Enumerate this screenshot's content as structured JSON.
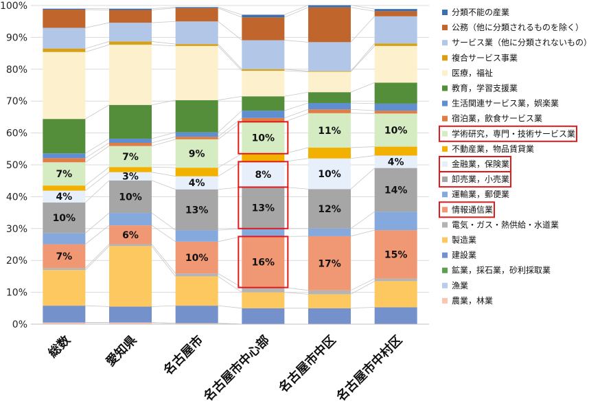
{
  "chart_data": {
    "type": "bar",
    "stacked": "percent",
    "categories": [
      "総数",
      "愛知県",
      "名古屋市",
      "名古屋市中心部",
      "名古屋市中区",
      "名古屋市中村区"
    ],
    "ylim": [
      0,
      100
    ],
    "y_ticks": [
      "0%",
      "10%",
      "20%",
      "30%",
      "40%",
      "50%",
      "60%",
      "70%",
      "80%",
      "90%",
      "100%"
    ],
    "legend_position": "right",
    "legend_order": "top-to-bottom matches stack top-to-bottom",
    "series": [
      {
        "name": "農業，林業",
        "color": "#f7c5b0",
        "values": [
          0.5,
          0.5,
          0.3,
          0.0,
          0.0,
          0.0
        ]
      },
      {
        "name": "漁業",
        "color": "#b7cde9",
        "values": [
          0.0,
          0.0,
          0.0,
          0.0,
          0.0,
          0.0
        ]
      },
      {
        "name": "鉱業，採石業，砂利採取業",
        "color": "#5e9e4f",
        "values": [
          0.0,
          0.0,
          0.0,
          0.0,
          0.0,
          0.0
        ]
      },
      {
        "name": "建設業",
        "color": "#7591cb",
        "values": [
          5.3,
          5.0,
          5.5,
          5.0,
          5.0,
          5.3
        ]
      },
      {
        "name": "製造業",
        "color": "#fcc85f",
        "values": [
          11.2,
          19.0,
          9.2,
          5.0,
          4.4,
          8.2
        ]
      },
      {
        "name": "電気・ガス・熱供給・水道業",
        "color": "#b4b4b4",
        "values": [
          0.6,
          0.6,
          0.9,
          1.5,
          1.2,
          0.8
        ]
      },
      {
        "name": "情報通信業",
        "color": "#f09873",
        "values": [
          7.5,
          5.9,
          10.0,
          16.0,
          17.0,
          15.2
        ]
      },
      {
        "name": "運輸業，郵便業",
        "color": "#85a9dc",
        "values": [
          3.5,
          3.9,
          3.6,
          2.5,
          2.4,
          5.8
        ]
      },
      {
        "name": "卸売業，小売業",
        "color": "#a6a6a6",
        "values": [
          9.6,
          10.2,
          12.8,
          13.0,
          12.4,
          13.7
        ]
      },
      {
        "name": "金融業，保険業",
        "color": "#e6effa",
        "values": [
          3.7,
          2.6,
          4.1,
          8.0,
          9.6,
          3.9
        ]
      },
      {
        "name": "不動産業，物品賃貸業",
        "color": "#f2b101",
        "values": [
          1.6,
          1.6,
          2.7,
          2.5,
          3.4,
          2.8
        ]
      },
      {
        "name": "学術研究，専門・技術サービス業",
        "color": "#d5ebc2",
        "values": [
          7.3,
          6.6,
          8.9,
          10.0,
          10.8,
          10.4
        ]
      },
      {
        "name": "宿泊業，飲食サービス業",
        "color": "#df7d44",
        "values": [
          1.3,
          1.0,
          0.8,
          1.2,
          1.2,
          0.9
        ]
      },
      {
        "name": "生活関連サービス業，娯楽業",
        "color": "#5f8fd0",
        "values": [
          1.5,
          1.3,
          1.4,
          2.3,
          2.0,
          2.2
        ]
      },
      {
        "name": "教育，学習支援業",
        "color": "#548e3a",
        "values": [
          10.8,
          10.6,
          10.1,
          4.5,
          3.4,
          6.6
        ]
      },
      {
        "name": "医療，福祉",
        "color": "#fdf0cd",
        "values": [
          21.0,
          18.9,
          17.0,
          8.0,
          6.4,
          11.5
        ]
      },
      {
        "name": "複合サービス事業",
        "color": "#d8a016",
        "values": [
          1.1,
          1.0,
          0.6,
          0.5,
          0.2,
          0.8
        ]
      },
      {
        "name": "サービス業（他に分類されないもの）",
        "color": "#b2c7e8",
        "values": [
          6.5,
          5.9,
          7.1,
          9.1,
          9.1,
          8.5
        ]
      },
      {
        "name": "公務（他に分類されるものを除く）",
        "color": "#c0652b",
        "values": [
          5.7,
          4.0,
          4.2,
          7.2,
          10.9,
          1.6
        ]
      },
      {
        "name": "分類不能の産業",
        "color": "#3c6fae",
        "values": [
          0.3,
          0.4,
          0.3,
          0.8,
          0.7,
          0.7
        ]
      }
    ],
    "data_labels": [
      {
        "series": "情報通信業",
        "labels": [
          "7%",
          "6%",
          "10%",
          "16%",
          "17%",
          "15%"
        ]
      },
      {
        "series": "卸売業，小売業",
        "labels": [
          "10%",
          "10%",
          "13%",
          "13%",
          "12%",
          "14%"
        ]
      },
      {
        "series": "金融業，保険業",
        "labels": [
          "4%",
          "3%",
          "4%",
          "8%",
          "10%",
          "4%"
        ]
      },
      {
        "series": "学術研究，専門・技術サービス業",
        "labels": [
          "7%",
          "7%",
          "9%",
          "10%",
          "11%",
          "10%"
        ]
      }
    ],
    "highlight_boxes": {
      "category": "名古屋市中心部",
      "series": [
        "情報通信業",
        "卸売業，小売業",
        "金融業，保険業",
        "学術研究，専門・技術サービス業"
      ],
      "color": "#e0191a"
    },
    "highlighted_legend": [
      "学術研究，専門・技術サービス業",
      "金融業，保険業",
      "卸売業，小売業",
      "情報通信業"
    ],
    "connector_lines": true,
    "grid": true
  }
}
